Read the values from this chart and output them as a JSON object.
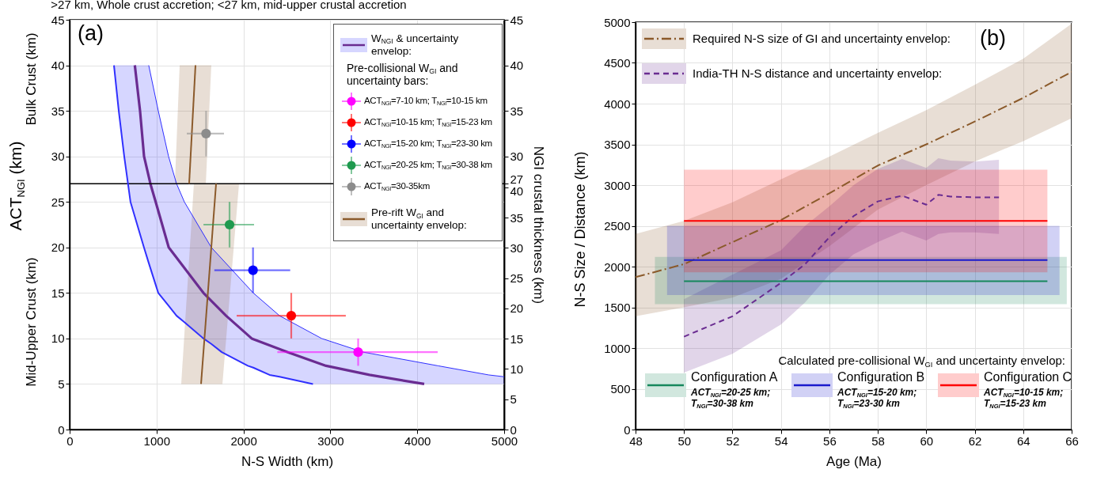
{
  "chart_data": [
    {
      "type": "line",
      "title": ">27 km, Whole crust accretion; <27 km, mid-upper crustal accretion",
      "xlabel": "N-S Width (km)",
      "ylabel": "ACT$_{NGI}$ (km)",
      "y2label": "NGI crustal thickness (km)",
      "legend_title": "Pre-collisional W$_{GI}$ and uncertainty bars:",
      "annotations": [
        "(a)",
        "Bulk Crust (km)",
        "Mid-Upper Crust (km)"
      ],
      "xlim": [
        0,
        5000
      ],
      "ylim": [
        0,
        45
      ],
      "xticks": [
        0,
        1000,
        2000,
        3000,
        4000,
        5000
      ],
      "yticks": [
        0,
        5,
        10,
        15,
        20,
        25,
        30,
        35,
        40,
        45
      ],
      "y2lim": [
        0,
        67.7
      ],
      "y2ticks": [
        0,
        5,
        10,
        15,
        20,
        25,
        30,
        35,
        40
      ],
      "y3lim": [
        0,
        45
      ],
      "y3ticks": [
        27,
        30,
        35,
        40,
        45
      ],
      "grid": true,
      "legend": "top right",
      "ref_lines": [
        {
          "axis": "y",
          "value": 27,
          "color": "#000000"
        }
      ],
      "series": [
        {
          "type": "line",
          "color": "#3030ff",
          "x": [
            510,
            565,
            628,
            700,
            855,
            910,
            1020,
            1138,
            1230,
            1320,
            1540,
            1630,
            1750,
            2050,
            2113,
            2300,
            2415,
            2800,
            2900,
            3380,
            4240,
            4820,
            5000
          ],
          "values": [
            40,
            35,
            30,
            25,
            20,
            18.3,
            15,
            13.6,
            12.5,
            11.8,
            10,
            9.4,
            8.5,
            7,
            6.8,
            6,
            5.8,
            5,
            null,
            null,
            null,
            null,
            null
          ],
          "lower": [
            40,
            35,
            30,
            25,
            20,
            18.3,
            15,
            13.6,
            12.5,
            11.8,
            10,
            9.4,
            8.5,
            7,
            6.8,
            6,
            5.8,
            5,
            5,
            5,
            5,
            5,
            5
          ],
          "upper": [
            40,
            40,
            40,
            40,
            40,
            40,
            35,
            30,
            27,
            25,
            21.5,
            20,
            18.8,
            15.7,
            15,
            13.5,
            12.5,
            10.5,
            10,
            8.5,
            7,
            6,
            5.8
          ]
        },
        {
          "type": "line",
          "color": "#3030ff",
          "x": [
            910,
            1020,
            1138,
            1230,
            1320,
            1630,
            2113,
            2415,
            2900,
            3380,
            4240,
            4820,
            5000
          ],
          "values": [
            40,
            35,
            30,
            27,
            25,
            20,
            15,
            12.5,
            10,
            8.5,
            7,
            6,
            5.8
          ]
        },
        {
          "type": "line",
          "name": "W$_{NGI}$ & uncertainty envelop:",
          "color": "#6a2c91",
          "x": [
            750,
            810,
            856,
            929,
            990,
            1140,
            1540,
            1800,
            2095,
            2510,
            2950,
            3450,
            4080
          ],
          "values": [
            40,
            35,
            30,
            27,
            25,
            20,
            15,
            12.5,
            10,
            8.5,
            7,
            6,
            5
          ]
        },
        {
          "type": "line",
          "name": "Pre-rift W$_{GI}$ and uncertainty envelop:",
          "color": "#8b5a2b",
          "x": [
            1211,
            1266,
            1375,
            1448,
            1567,
            1630
          ],
          "values": [
            null,
            null,
            27,
            40,
            null,
            null
          ],
          "lower": [
            27,
            27,
            27,
            27,
            27,
            40
          ],
          "upper": [
            27,
            40,
            40,
            40,
            40,
            40
          ]
        },
        {
          "type": "line",
          "color": "#8b5a2b",
          "x": [
            1284,
            1430,
            1512,
            1685,
            1758,
            1949
          ],
          "values": [
            null,
            null,
            5,
            27,
            null,
            null
          ],
          "lower": [
            5,
            5,
            5,
            5,
            5,
            27
          ],
          "upper": [
            5,
            27,
            27,
            27,
            27,
            27
          ]
        },
        {
          "type": "scatter",
          "name": "ACT$_{NGI}$=7-10 km; T$_{NGI}$=10-15 km",
          "color": "#ff00ff",
          "marker": "circle",
          "x": [
            3320
          ],
          "values": [
            8.5
          ],
          "errors": [
            [
              7,
              10
            ]
          ],
          "xerrors": [
            [
              2390,
              4235
            ]
          ]
        },
        {
          "type": "scatter",
          "name": "ACT$_{NGI}$=10-15 km; T$_{NGI}$=15-23 km",
          "color": "#ff0000",
          "marker": "circle",
          "x": [
            2550
          ],
          "values": [
            12.5
          ],
          "errors": [
            [
              10,
              15
            ]
          ],
          "xerrors": [
            [
              1922,
              3178
            ]
          ]
        },
        {
          "type": "scatter",
          "name": "ACT$_{NGI}$=15-20 km; T$_{NGI}$=23-30 km",
          "color": "#0000ff",
          "marker": "circle",
          "x": [
            2110
          ],
          "values": [
            17.5
          ],
          "errors": [
            [
              15,
              20
            ]
          ],
          "xerrors": [
            [
              1665,
              2538
            ]
          ]
        },
        {
          "type": "scatter",
          "name": "ACT$_{NGI}$=20-25 km; T$_{NGI}$=30-38 km",
          "color": "#1f9a4f",
          "marker": "circle",
          "x": [
            1840
          ],
          "values": [
            22.5
          ],
          "errors": [
            [
              20,
              25
            ]
          ],
          "xerrors": [
            [
              1540,
              2122
            ]
          ]
        },
        {
          "type": "scatter",
          "name": "ACT$_{NGI}$=30-35km",
          "color": "#8c8c8c",
          "marker": "circle",
          "x": [
            1570
          ],
          "values": [
            32.5
          ],
          "errors": [
            [
              30,
              35
            ]
          ],
          "xerrors": [
            [
              1348,
              1776
            ]
          ]
        }
      ]
    },
    {
      "type": "line",
      "xlabel": "Age (Ma)",
      "ylabel": "N-S Size / Distance (km)",
      "legend_title": "Calculated pre-collisional W$_{GI}$ and uncertainty envelop:",
      "annotations": [
        "(b)",
        "ACT$_{NGI}$=20-25 km; T$_{NGI}$=30-38 km",
        "ACT$_{NGI}$=15-20 km; T$_{NGI}$=23-30 km",
        "ACT$_{NGI}$=10-15 km; T$_{NGI}$=15-23 km"
      ],
      "xlim": [
        48,
        66
      ],
      "ylim": [
        0,
        5000
      ],
      "xticks": [
        48,
        50,
        52,
        54,
        56,
        58,
        60,
        62,
        64,
        66
      ],
      "yticks": [
        0,
        500,
        1000,
        1500,
        2000,
        2500,
        3000,
        3500,
        4000,
        4500,
        5000
      ],
      "grid": true,
      "legend": "top right",
      "series": [
        {
          "name": "Required N-S size of GI and uncertainty envelop:",
          "color": "#8b5a2b",
          "line_style": "dashdot",
          "x": [
            48,
            50,
            52,
            54,
            56,
            58,
            60,
            62,
            64,
            66
          ],
          "values": [
            1870,
            2030,
            2300,
            2570,
            2900,
            3240,
            3500,
            3780,
            4070,
            4390
          ],
          "lower": [
            1390,
            1500,
            1620,
            1850,
            2250,
            2700,
            3000,
            3290,
            3540,
            3820
          ],
          "upper": [
            2400,
            2560,
            2790,
            3070,
            3350,
            3640,
            3920,
            4230,
            4550,
            4980
          ]
        },
        {
          "name": "India-TH N-S distance and uncertainty envelop:",
          "color": "#6a2c91",
          "line_style": "dashed",
          "x": [
            50,
            52,
            54,
            55,
            56,
            57,
            58,
            59,
            60,
            60.5,
            61,
            62,
            63
          ],
          "values": [
            1140,
            1390,
            1800,
            2030,
            2360,
            2620,
            2800,
            2870,
            2760,
            2880,
            2860,
            2850,
            2850
          ],
          "lower": [
            700,
            930,
            1290,
            1560,
            1900,
            2150,
            2300,
            2430,
            2320,
            2400,
            2420,
            2420,
            2400
          ],
          "upper": [
            1600,
            1900,
            2200,
            2500,
            2740,
            3000,
            3200,
            3320,
            3210,
            3330,
            3300,
            3290,
            3310
          ]
        },
        {
          "name": "Configuration A",
          "color": "#17875c",
          "x": [
            48.8,
            50,
            65,
            65.8
          ],
          "values": [
            null,
            1820,
            1820,
            null
          ],
          "lower": [
            1540,
            1540,
            1540,
            1540
          ],
          "upper": [
            2120,
            2120,
            2120,
            2120
          ]
        },
        {
          "name": "Configuration B",
          "color": "#1a1acc",
          "x": [
            49.3,
            50,
            65,
            65.5
          ],
          "values": [
            null,
            2080,
            2080,
            null
          ],
          "lower": [
            1650,
            1650,
            1650,
            1650
          ],
          "upper": [
            2500,
            2500,
            2500,
            2500
          ]
        },
        {
          "name": "Configuration C",
          "color": "#ff0000",
          "x": [
            50,
            65
          ],
          "values": [
            2560,
            2560
          ],
          "lower": [
            1930,
            1930
          ],
          "upper": [
            3190,
            3190
          ]
        }
      ]
    }
  ]
}
